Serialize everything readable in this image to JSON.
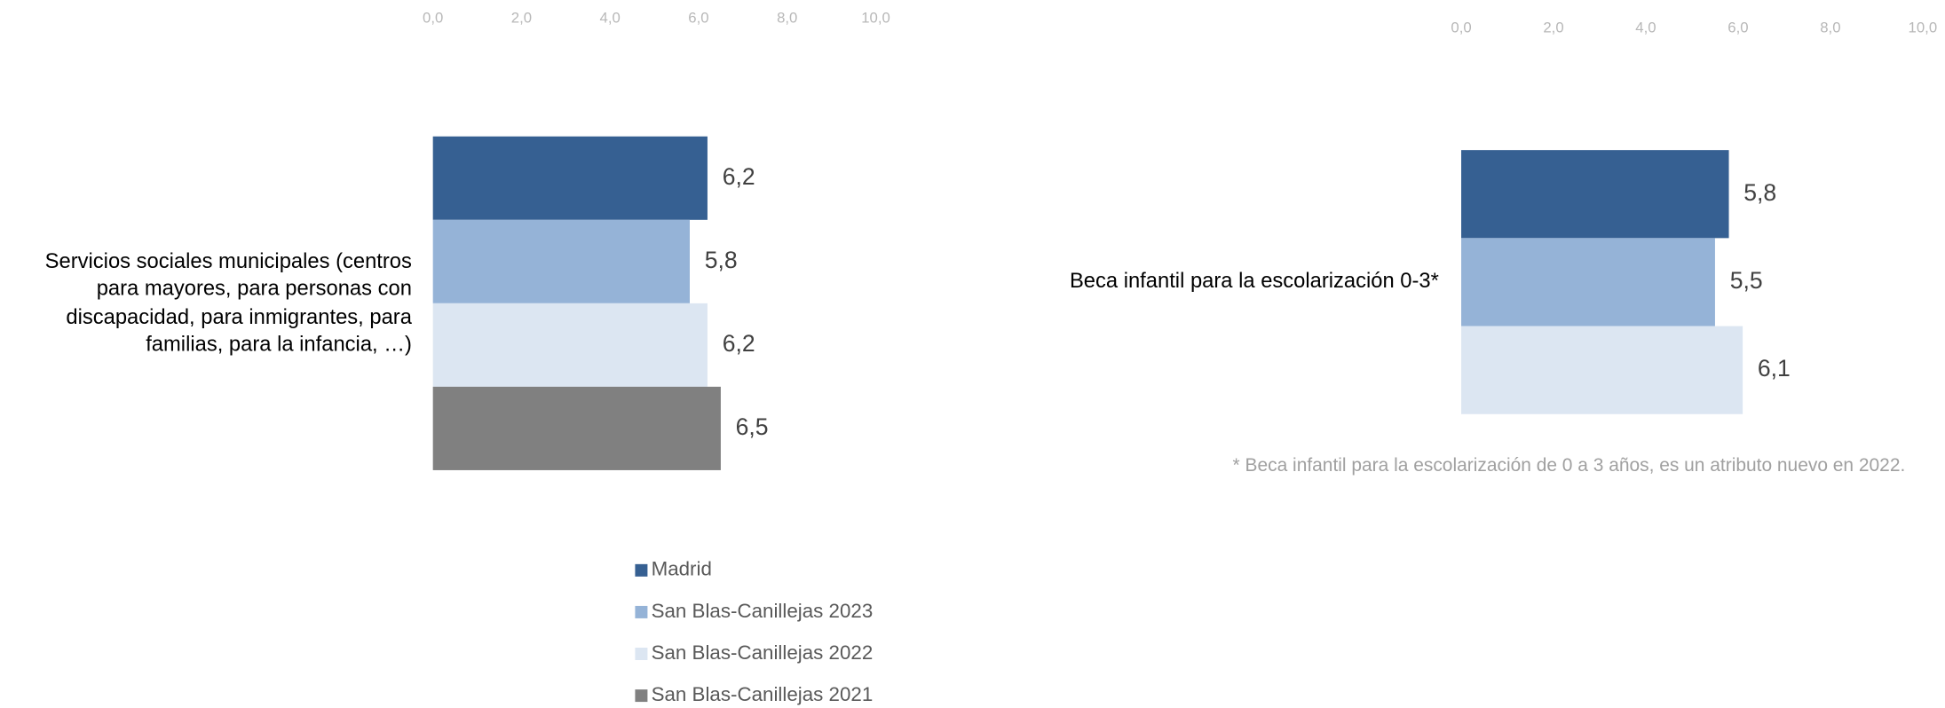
{
  "chart_data": [
    {
      "type": "bar",
      "orientation": "horizontal",
      "categories": [
        "Servicios sociales municipales (centros para mayores, para personas con discapacidad, para inmigrantes, para familias, para la infancia, …)"
      ],
      "series": [
        {
          "name": "Madrid",
          "color": "#366092",
          "values": [
            6.2
          ],
          "value_labels": [
            "6,2"
          ]
        },
        {
          "name": "San Blas-Canillejas 2023",
          "color": "#95b3d7",
          "values": [
            5.8
          ],
          "value_labels": [
            "5,8"
          ]
        },
        {
          "name": "San Blas-Canillejas 2022",
          "color": "#dce6f2",
          "values": [
            6.2
          ],
          "value_labels": [
            "6,2"
          ]
        },
        {
          "name": "San Blas-Canillejas 2021",
          "color": "#808080",
          "values": [
            6.5
          ],
          "value_labels": [
            "6,5"
          ]
        }
      ],
      "xlim": [
        0,
        10
      ],
      "xticks": [
        {
          "value": 0,
          "label": "0,0"
        },
        {
          "value": 2,
          "label": "2,0"
        },
        {
          "value": 4,
          "label": "4,0"
        },
        {
          "value": 6,
          "label": "6,0"
        },
        {
          "value": 8,
          "label": "8,0"
        },
        {
          "value": 10,
          "label": "10,0"
        }
      ],
      "legend": "bottom"
    },
    {
      "type": "bar",
      "orientation": "horizontal",
      "categories": [
        "Beca infantil para la escolarización 0-3*"
      ],
      "series": [
        {
          "color": "#366092",
          "values": [
            5.8
          ],
          "value_labels": [
            "5,8"
          ]
        },
        {
          "color": "#95b3d7",
          "values": [
            5.5
          ],
          "value_labels": [
            "5,5"
          ]
        },
        {
          "color": "#dce6f2",
          "values": [
            6.1
          ],
          "value_labels": [
            "6,1"
          ]
        }
      ],
      "xlim": [
        0,
        10
      ],
      "xticks": [
        {
          "value": 0,
          "label": "0,0"
        },
        {
          "value": 2,
          "label": "2,0"
        },
        {
          "value": 4,
          "label": "4,0"
        },
        {
          "value": 6,
          "label": "6,0"
        },
        {
          "value": 8,
          "label": "8,0"
        },
        {
          "value": 10,
          "label": "10,0"
        }
      ],
      "note": "* Beca infantil para la escolarización de 0 a 3 años, es un atributo nuevo en 2022."
    }
  ]
}
